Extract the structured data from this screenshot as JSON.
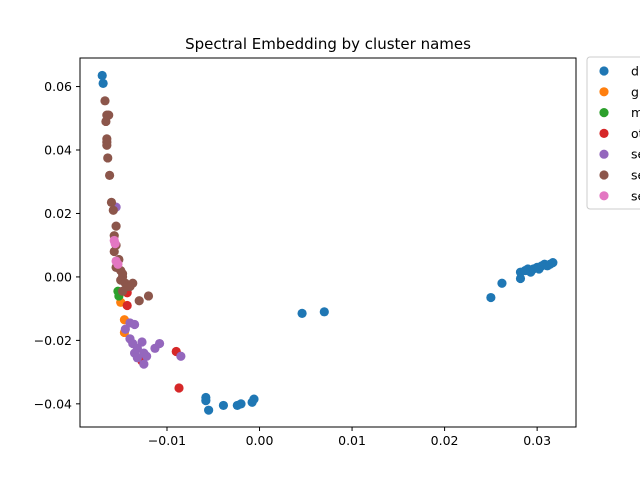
{
  "chart_data": {
    "type": "scatter",
    "title": "Spectral Embedding by cluster names",
    "xlabel": "",
    "ylabel": "",
    "xlim": [
      -0.0194,
      0.0342
    ],
    "ylim": [
      -0.0473,
      0.069
    ],
    "x_ticks": [
      -0.01,
      0.0,
      0.01,
      0.02,
      0.03
    ],
    "x_tick_labels": [
      "−0.01",
      "0.00",
      "0.01",
      "0.02",
      "0.03"
    ],
    "y_ticks": [
      -0.04,
      -0.02,
      0.0,
      0.02,
      0.04,
      0.06
    ],
    "y_tick_labels": [
      "−0.04",
      "−0.02",
      "0.00",
      "0.02",
      "0.04",
      "0.06"
    ],
    "grid": false,
    "legend_position": "outside-top-right",
    "series": [
      {
        "name": "d",
        "color": "#1f77b4",
        "points": [
          [
            -0.017,
            0.0635
          ],
          [
            -0.0169,
            0.061
          ],
          [
            -0.0058,
            -0.038
          ],
          [
            -0.0058,
            -0.039
          ],
          [
            -0.0055,
            -0.042
          ],
          [
            -0.0039,
            -0.0405
          ],
          [
            -0.0024,
            -0.0405
          ],
          [
            -0.002,
            -0.04
          ],
          [
            -0.0008,
            -0.0395
          ],
          [
            -0.0006,
            -0.0385
          ],
          [
            0.0046,
            -0.0115
          ],
          [
            0.007,
            -0.011
          ],
          [
            0.025,
            -0.0065
          ],
          [
            0.0262,
            -0.002
          ],
          [
            0.0282,
            -0.0005
          ],
          [
            0.0282,
            0.0015
          ],
          [
            0.0287,
            0.002
          ],
          [
            0.029,
            0.0025
          ],
          [
            0.0293,
            0.0015
          ],
          [
            0.0296,
            0.0025
          ],
          [
            0.03,
            0.003
          ],
          [
            0.0302,
            0.0025
          ],
          [
            0.0305,
            0.0035
          ],
          [
            0.0308,
            0.004
          ],
          [
            0.0311,
            0.0035
          ],
          [
            0.0314,
            0.004
          ],
          [
            0.0317,
            0.0045
          ]
        ]
      },
      {
        "name": "g",
        "color": "#ff7f0e",
        "points": [
          [
            -0.015,
            -0.008
          ],
          [
            -0.0146,
            -0.0135
          ],
          [
            -0.0146,
            -0.0175
          ]
        ]
      },
      {
        "name": "m",
        "color": "#2ca02c",
        "points": [
          [
            -0.0153,
            -0.0045
          ],
          [
            -0.0152,
            -0.006
          ]
        ]
      },
      {
        "name": "ot",
        "color": "#d62728",
        "points": [
          [
            -0.0143,
            -0.005
          ],
          [
            -0.0143,
            -0.009
          ],
          [
            -0.009,
            -0.0235
          ],
          [
            -0.0087,
            -0.035
          ],
          [
            -0.0127,
            -0.0265
          ]
        ]
      },
      {
        "name": "se",
        "color": "#9467bd",
        "points": [
          [
            -0.0155,
            0.022
          ],
          [
            -0.0145,
            -0.0165
          ],
          [
            -0.014,
            -0.0145
          ],
          [
            -0.0135,
            -0.015
          ],
          [
            -0.014,
            -0.0195
          ],
          [
            -0.0137,
            -0.021
          ],
          [
            -0.0132,
            -0.0225
          ],
          [
            -0.0135,
            -0.024
          ],
          [
            -0.0132,
            -0.0255
          ],
          [
            -0.0127,
            -0.0205
          ],
          [
            -0.0125,
            -0.024
          ],
          [
            -0.0122,
            -0.025
          ],
          [
            -0.0125,
            -0.0275
          ],
          [
            -0.0113,
            -0.0225
          ],
          [
            -0.0108,
            -0.021
          ],
          [
            -0.0085,
            -0.025
          ]
        ]
      },
      {
        "name": "se",
        "color": "#8c564b",
        "points": [
          [
            -0.0167,
            0.0555
          ],
          [
            -0.0165,
            0.051
          ],
          [
            -0.0163,
            0.051
          ],
          [
            -0.0166,
            0.049
          ],
          [
            -0.0165,
            0.0435
          ],
          [
            -0.0165,
            0.0425
          ],
          [
            -0.0165,
            0.0415
          ],
          [
            -0.0164,
            0.0375
          ],
          [
            -0.0162,
            0.032
          ],
          [
            -0.016,
            0.0235
          ],
          [
            -0.0158,
            0.021
          ],
          [
            -0.0155,
            0.016
          ],
          [
            -0.0157,
            0.013
          ],
          [
            -0.0155,
            0.01
          ],
          [
            -0.0157,
            0.008
          ],
          [
            -0.0152,
            0.0055
          ],
          [
            -0.0155,
            0.003
          ],
          [
            -0.015,
            0.002
          ],
          [
            -0.0148,
            0.001
          ],
          [
            -0.0148,
            0.0
          ],
          [
            -0.015,
            -0.001
          ],
          [
            -0.0145,
            -0.002
          ],
          [
            -0.0143,
            -0.003
          ],
          [
            -0.014,
            -0.003
          ],
          [
            -0.0137,
            -0.002
          ],
          [
            -0.0148,
            -0.0045
          ],
          [
            -0.013,
            -0.0075
          ],
          [
            -0.012,
            -0.006
          ]
        ]
      },
      {
        "name": "se",
        "color": "#e377c2",
        "points": [
          [
            -0.0157,
            0.0115
          ],
          [
            -0.0156,
            0.0105
          ],
          [
            -0.0155,
            0.005
          ],
          [
            -0.0153,
            0.004
          ]
        ]
      }
    ]
  }
}
